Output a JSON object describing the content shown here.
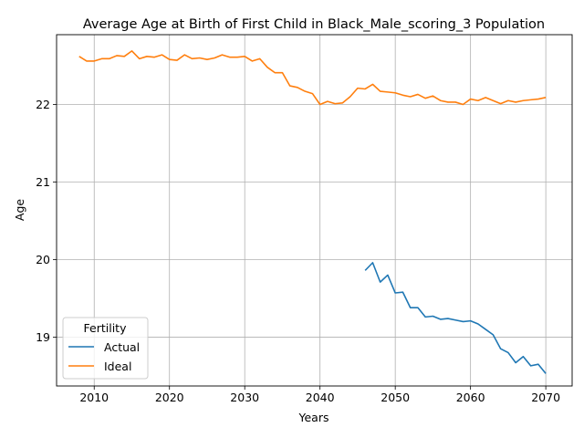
{
  "chart_data": {
    "type": "line",
    "title": "Average Age at Birth of First Child in Black_Male_scoring_3 Population",
    "xlabel": "Years",
    "ylabel": "Age",
    "xlim": [
      2005,
      2073.5
    ],
    "ylim": [
      18.37,
      22.9
    ],
    "xticks": [
      2010,
      2020,
      2030,
      2040,
      2050,
      2060,
      2070
    ],
    "yticks": [
      19,
      20,
      21,
      22
    ],
    "grid": true,
    "legend": {
      "title": "Fertility",
      "placement": "lower-left"
    },
    "series": [
      {
        "name": "Actual",
        "color": "#1f77b4",
        "x": [
          2046,
          2047,
          2048,
          2049,
          2050,
          2051,
          2052,
          2053,
          2054,
          2055,
          2056,
          2057,
          2058,
          2059,
          2060,
          2061,
          2062,
          2063,
          2064,
          2065,
          2066,
          2067,
          2068,
          2069,
          2070
        ],
        "y": [
          19.86,
          19.96,
          19.71,
          19.8,
          19.57,
          19.58,
          19.38,
          19.38,
          19.26,
          19.27,
          19.23,
          19.24,
          19.22,
          19.2,
          19.21,
          19.17,
          19.1,
          19.03,
          18.85,
          18.8,
          18.67,
          18.75,
          18.63,
          18.65,
          18.53
        ]
      },
      {
        "name": "Ideal",
        "color": "#ff7f0e",
        "x": [
          2008,
          2009,
          2010,
          2011,
          2012,
          2013,
          2014,
          2015,
          2016,
          2017,
          2018,
          2019,
          2020,
          2021,
          2022,
          2023,
          2024,
          2025,
          2026,
          2027,
          2028,
          2029,
          2030,
          2031,
          2032,
          2033,
          2034,
          2035,
          2036,
          2037,
          2038,
          2039,
          2040,
          2041,
          2042,
          2043,
          2044,
          2045,
          2046,
          2047,
          2048,
          2049,
          2050,
          2051,
          2052,
          2053,
          2054,
          2055,
          2056,
          2057,
          2058,
          2059,
          2060,
          2061,
          2062,
          2063,
          2064,
          2065,
          2066,
          2067,
          2068,
          2069,
          2070
        ],
        "y": [
          22.62,
          22.56,
          22.56,
          22.59,
          22.59,
          22.63,
          22.62,
          22.69,
          22.59,
          22.62,
          22.61,
          22.64,
          22.58,
          22.57,
          22.64,
          22.59,
          22.6,
          22.58,
          22.6,
          22.64,
          22.61,
          22.61,
          22.62,
          22.56,
          22.59,
          22.48,
          22.41,
          22.41,
          22.24,
          22.22,
          22.17,
          22.14,
          22.0,
          22.04,
          22.01,
          22.02,
          22.1,
          22.21,
          22.2,
          22.26,
          22.17,
          22.16,
          22.15,
          22.12,
          22.1,
          22.13,
          22.08,
          22.11,
          22.05,
          22.03,
          22.03,
          22.0,
          22.07,
          22.05,
          22.09,
          22.05,
          22.01,
          22.05,
          22.03,
          22.05,
          22.06,
          22.07,
          22.09
        ]
      }
    ]
  }
}
